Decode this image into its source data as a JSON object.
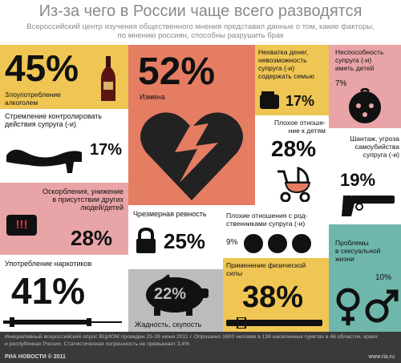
{
  "title": "Из-за чего в России чаще всего разводятся",
  "subtitle_line1": "Всероссийский центр изучения общественного мнения представил данные о том, какие факторы,",
  "subtitle_line2": "по мнению россиян, способны разрушить брак",
  "colors": {
    "yellow": "#efc553",
    "pink": "#e9a4a7",
    "teal": "#6fb7ad",
    "salmon": "#e57d63",
    "gray": "#bdbcbc",
    "dark": "#333333"
  },
  "items": {
    "alcohol": {
      "percent": "45%",
      "label_1": "Злоупотребление",
      "label_2": "алкоголем",
      "icon": "bottle-icon"
    },
    "control": {
      "percent": "17%",
      "label_1": "Стремление контролировать",
      "label_2": "действия супруга (-и)",
      "icon": "shoe-icon"
    },
    "insults": {
      "percent": "28%",
      "label_1": "Оскорбления, унижение",
      "label_2": "в присутствии других",
      "label_3": "людей/детей",
      "icon": "speech-bubble-icon",
      "bubble_text": "!!!"
    },
    "drugs": {
      "percent": "41%",
      "label_1": "Употребление наркотиков",
      "icon": "syringe-icon"
    },
    "cheating": {
      "percent": "52%",
      "label_1": "Измена",
      "icon": "broken-heart-icon"
    },
    "jealousy": {
      "percent": "25%",
      "label_1": "Чрезмерная ревность",
      "icon": "padlock-icon"
    },
    "greed": {
      "percent": "22%",
      "label_1": "Жадность, скупость",
      "icon": "piggy-bank-icon"
    },
    "money": {
      "percent": "17%",
      "label_1": "Нехватка денег,",
      "label_2": "невозможность",
      "label_3": "супруга (-и)",
      "label_4": "содержать семью",
      "icon": "wallet-icon"
    },
    "childless": {
      "percent": "7%",
      "label_1": "Неспособность",
      "label_2": "супруга (-и)",
      "label_3": "иметь детей",
      "icon": "baby-face-icon"
    },
    "children": {
      "percent": "28%",
      "label_1": "Плохое отноше-",
      "label_2": "ние к детям",
      "icon": "stroller-icon"
    },
    "blackmail": {
      "percent": "19%",
      "label_1": "Шантаж, угроза",
      "label_2": "самоубийства",
      "label_3": "супруга (-и)",
      "icon": "gun-icon"
    },
    "relatives": {
      "percent": "9%",
      "label_1": "Плохие отношения с род-",
      "label_2": "ственниками супруга (-и)",
      "icon": "faces-icon"
    },
    "violence": {
      "percent": "38%",
      "label_1": "Применение физической",
      "label_2": "силы",
      "icon": "belt-icon"
    },
    "sex": {
      "percent": "10%",
      "label_1": "Проблемы",
      "label_2": "в сексуальной",
      "label_3": "жизни",
      "icon": "gender-symbols-icon"
    }
  },
  "footer": {
    "text": "Инициативный всероссийский опрос ВЦИОМ проведен 25-26 июня 2011 г. Опрошено 1600 человек в 138 населенных пунктах в 46 областях, краях и республиках России. Статистическая погрешность не превышает 3,4%",
    "logo": "РИА НОВОСТИ © 2011",
    "site": "www.ria.ru"
  }
}
